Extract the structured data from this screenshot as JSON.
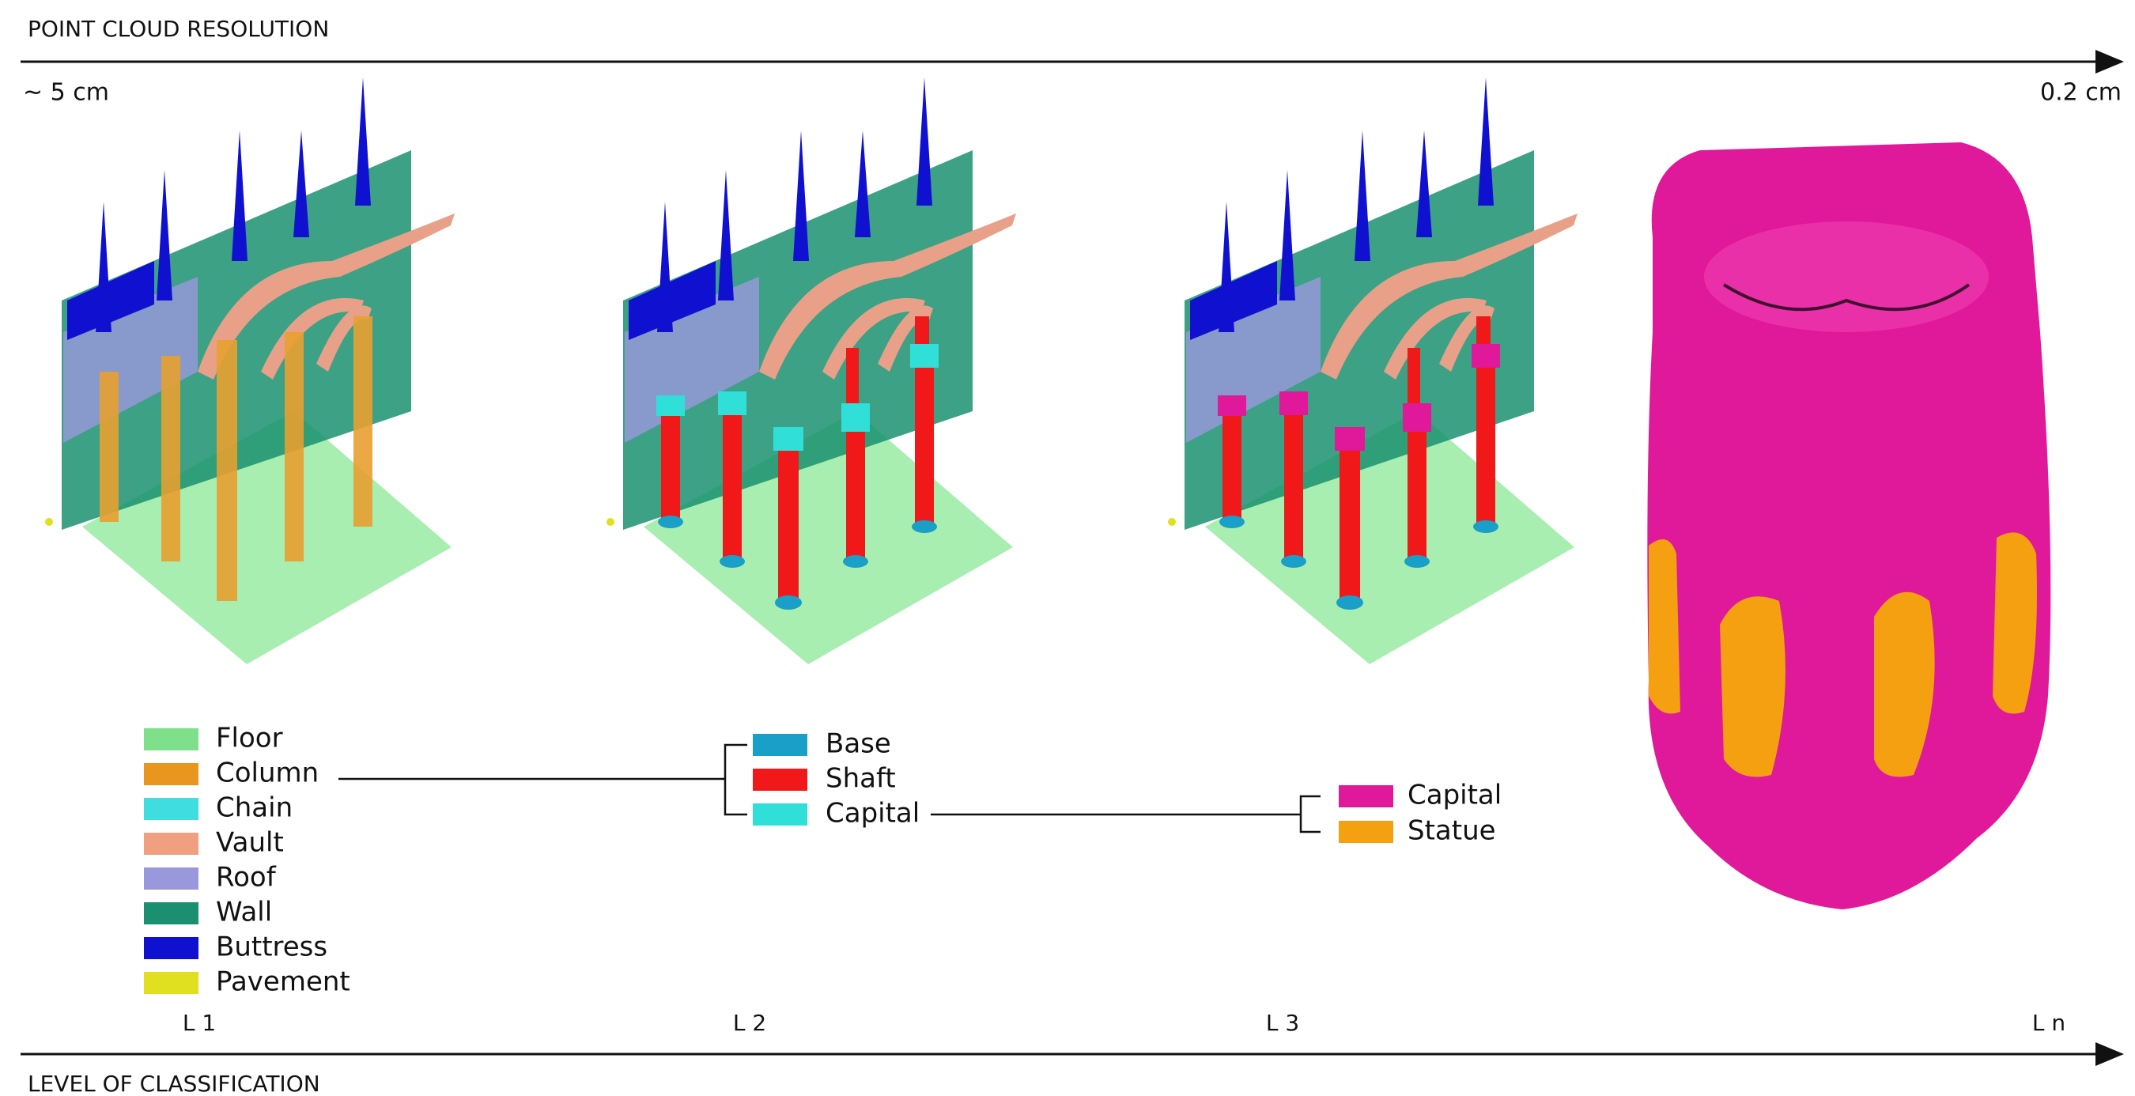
{
  "header": {
    "top_axis_label": "POINT CLOUD RESOLUTION",
    "resolution_start": "~ 5 cm",
    "resolution_end": "0.2 cm",
    "bottom_axis_label": "LEVEL OF CLASSIFICATION"
  },
  "levels": [
    "L 1",
    "L 2",
    "L 3",
    "L n"
  ],
  "legends": [
    {
      "items": [
        {
          "label": "Floor",
          "color": "#7ee08a"
        },
        {
          "label": "Column",
          "color": "#e8961e"
        },
        {
          "label": "Chain",
          "color": "#3fdde0"
        },
        {
          "label": "Vault",
          "color": "#f0a080"
        },
        {
          "label": "Roof",
          "color": "#9a98dc"
        },
        {
          "label": "Wall",
          "color": "#1a9070"
        },
        {
          "label": "Buttress",
          "color": "#1010d0"
        },
        {
          "label": "Pavement",
          "color": "#e0e020"
        }
      ]
    },
    {
      "items": [
        {
          "label": "Base",
          "color": "#1a9fc8"
        },
        {
          "label": "Shaft",
          "color": "#f01818"
        },
        {
          "label": "Capital",
          "color": "#30e0d8"
        }
      ]
    },
    {
      "items": [
        {
          "label": "Capital",
          "color": "#e0189a"
        },
        {
          "label": "Statue",
          "color": "#f5a010"
        }
      ]
    }
  ]
}
